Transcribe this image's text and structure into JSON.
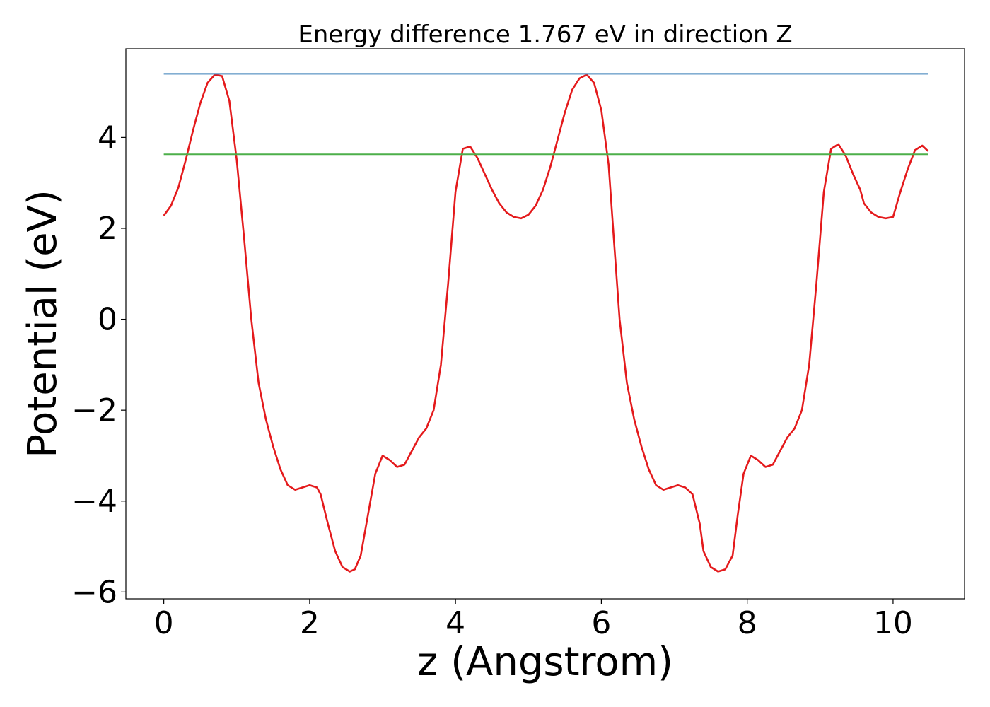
{
  "chart_data": {
    "type": "line",
    "title": "Energy difference 1.767 eV in direction Z",
    "xlabel": "z (Angstrom)",
    "ylabel": "Potential (eV)",
    "xlim": [
      -0.52,
      10.98
    ],
    "ylim": [
      -6.15,
      5.95
    ],
    "xticks": [
      0,
      2,
      4,
      6,
      8,
      10
    ],
    "xtick_labels": [
      "0",
      "2",
      "4",
      "6",
      "8",
      "10"
    ],
    "yticks": [
      -6,
      -4,
      -2,
      0,
      2,
      4
    ],
    "ytick_labels": [
      "−6",
      "−4",
      "−2",
      "0",
      "2",
      "4"
    ],
    "grid": false,
    "series": [
      {
        "color": "#e41a1c",
        "kind": "curve",
        "x": [
          0.0,
          0.1,
          0.2,
          0.3,
          0.4,
          0.5,
          0.6,
          0.7,
          0.8,
          0.9,
          1.0,
          1.1,
          1.2,
          1.3,
          1.4,
          1.5,
          1.6,
          1.7,
          1.8,
          1.9,
          2.0,
          2.1,
          2.15,
          2.25,
          2.35,
          2.45,
          2.55,
          2.62,
          2.7,
          2.8,
          2.9,
          3.0,
          3.1,
          3.2,
          3.3,
          3.4,
          3.5,
          3.6,
          3.7,
          3.8,
          3.9,
          4.0,
          4.1,
          4.2,
          4.3,
          4.4,
          4.5,
          4.6,
          4.7,
          4.8,
          4.9,
          5.0,
          5.1,
          5.2,
          5.3,
          5.4,
          5.5,
          5.6,
          5.7,
          5.8,
          5.9,
          6.0,
          6.1,
          6.17,
          6.25,
          6.35,
          6.45,
          6.55,
          6.65,
          6.75,
          6.85,
          6.95,
          7.05,
          7.15,
          7.25,
          7.35,
          7.4,
          7.5,
          7.6,
          7.7,
          7.8,
          7.87,
          7.95,
          8.05,
          8.15,
          8.25,
          8.35,
          8.45,
          8.55,
          8.65,
          8.75,
          8.85,
          8.95,
          9.05,
          9.15,
          9.25,
          9.35,
          9.45,
          9.55,
          9.6,
          9.7,
          9.8,
          9.9,
          10.0,
          10.1,
          10.2,
          10.3,
          10.4,
          10.48
        ],
        "y": [
          2.28,
          2.5,
          2.9,
          3.5,
          4.15,
          4.75,
          5.2,
          5.38,
          5.35,
          4.8,
          3.5,
          1.8,
          0.0,
          -1.4,
          -2.2,
          -2.8,
          -3.3,
          -3.65,
          -3.75,
          -3.7,
          -3.65,
          -3.7,
          -3.85,
          -4.5,
          -5.1,
          -5.45,
          -5.55,
          -5.5,
          -5.2,
          -4.3,
          -3.4,
          -3.0,
          -3.1,
          -3.25,
          -3.2,
          -2.9,
          -2.6,
          -2.4,
          -2.0,
          -1.0,
          0.8,
          2.8,
          3.75,
          3.8,
          3.55,
          3.2,
          2.85,
          2.55,
          2.35,
          2.25,
          2.22,
          2.3,
          2.5,
          2.85,
          3.35,
          3.95,
          4.55,
          5.05,
          5.3,
          5.38,
          5.2,
          4.6,
          3.4,
          1.8,
          0.0,
          -1.4,
          -2.2,
          -2.8,
          -3.3,
          -3.65,
          -3.75,
          -3.7,
          -3.65,
          -3.7,
          -3.85,
          -4.5,
          -5.1,
          -5.45,
          -5.55,
          -5.5,
          -5.2,
          -4.3,
          -3.4,
          -3.0,
          -3.1,
          -3.25,
          -3.2,
          -2.9,
          -2.6,
          -2.4,
          -2.0,
          -1.0,
          0.8,
          2.8,
          3.75,
          3.85,
          3.6,
          3.2,
          2.85,
          2.55,
          2.35,
          2.25,
          2.22,
          2.25,
          2.8,
          3.3,
          3.72,
          3.82,
          3.7
        ]
      },
      {
        "color": "#377eb8",
        "kind": "hline",
        "x": [
          0.0,
          10.48
        ],
        "y": [
          5.4,
          5.4
        ]
      },
      {
        "color": "#4daf4a",
        "kind": "hline",
        "x": [
          0.0,
          10.48
        ],
        "y": [
          3.63,
          3.63
        ]
      }
    ]
  }
}
